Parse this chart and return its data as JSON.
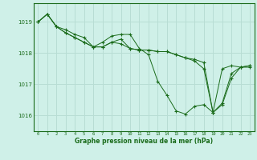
{
  "background_color": "#cff0e8",
  "grid_color": "#b8ddd4",
  "line_color": "#1a6b1a",
  "marker_color": "#1a6b1a",
  "xlabel": "Graphe pression niveau de la mer (hPa)",
  "xlabel_color": "#1a6b1a",
  "xlim": [
    -0.5,
    23.5
  ],
  "ylim": [
    1015.5,
    1019.6
  ],
  "yticks": [
    1016,
    1017,
    1018,
    1019
  ],
  "xticks": [
    0,
    1,
    2,
    3,
    4,
    5,
    6,
    7,
    8,
    9,
    10,
    11,
    12,
    13,
    14,
    15,
    16,
    17,
    18,
    19,
    20,
    21,
    22,
    23
  ],
  "lines": [
    {
      "x": [
        0,
        1,
        2,
        3,
        4,
        5,
        6,
        7,
        8,
        9,
        10,
        11,
        12,
        13,
        14,
        15,
        16,
        17,
        18,
        19,
        20,
        21,
        22,
        23
      ],
      "y": [
        1019.0,
        1019.25,
        1018.85,
        1018.75,
        1018.6,
        1018.5,
        1018.2,
        1018.2,
        1018.35,
        1018.3,
        1018.15,
        1018.1,
        1018.1,
        1018.05,
        1018.05,
        1017.95,
        1017.85,
        1017.8,
        1017.7,
        1016.1,
        1017.5,
        1017.6,
        1017.55,
        1017.55
      ]
    },
    {
      "x": [
        0,
        1,
        2,
        3,
        4,
        5,
        6,
        7,
        8,
        9,
        10,
        11,
        12,
        13,
        14,
        15,
        16,
        17,
        18,
        19,
        20,
        21,
        22,
        23
      ],
      "y": [
        1019.0,
        1019.25,
        1018.85,
        1018.65,
        1018.5,
        1018.35,
        1018.2,
        1018.35,
        1018.55,
        1018.6,
        1018.6,
        1018.15,
        1017.95,
        1017.1,
        1016.65,
        1016.15,
        1016.05,
        1016.3,
        1016.35,
        1016.1,
        1016.35,
        1017.2,
        1017.55,
        1017.6
      ]
    },
    {
      "x": [
        0,
        1,
        2,
        3,
        4,
        5,
        6,
        7,
        8,
        9,
        10,
        11,
        12,
        13,
        14,
        15,
        16,
        17,
        18,
        19,
        20,
        21,
        22,
        23
      ],
      "y": [
        1019.0,
        1019.25,
        1018.85,
        1018.65,
        1018.5,
        1018.35,
        1018.2,
        1018.2,
        1018.35,
        1018.45,
        1018.15,
        1018.1,
        1018.1,
        1018.05,
        1018.05,
        1017.95,
        1017.85,
        1017.75,
        1017.5,
        1016.1,
        1016.4,
        1017.35,
        1017.55,
        1017.6
      ]
    }
  ]
}
